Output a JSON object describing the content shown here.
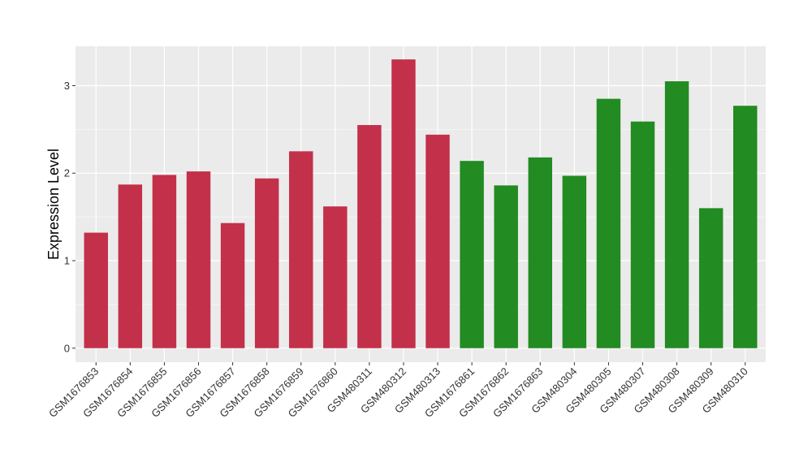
{
  "chart_data": {
    "type": "bar",
    "title": "",
    "xlabel": "",
    "ylabel": "Expression Level",
    "ylim": [
      -0.16,
      3.45
    ],
    "yticks": [
      0,
      1,
      2,
      3
    ],
    "grid": true,
    "legend": "none",
    "colors": {
      "group1": "#C3304A",
      "group2": "#228B22",
      "panel": "#EBEBEB",
      "grid": "#FFFFFF"
    },
    "categories": [
      "GSM1676853",
      "GSM1676854",
      "GSM1676855",
      "GSM1676856",
      "GSM1676857",
      "GSM1676858",
      "GSM1676859",
      "GSM1676860",
      "GSM480311",
      "GSM480312",
      "GSM480313",
      "GSM1676861",
      "GSM1676862",
      "GSM1676863",
      "GSM480304",
      "GSM480305",
      "GSM480307",
      "GSM480308",
      "GSM480309",
      "GSM480310"
    ],
    "values": [
      1.32,
      1.87,
      1.98,
      2.02,
      1.43,
      1.94,
      2.25,
      1.62,
      2.55,
      3.3,
      2.44,
      2.14,
      1.86,
      2.18,
      1.97,
      2.85,
      2.59,
      3.05,
      1.6,
      2.77
    ],
    "groups": [
      1,
      1,
      1,
      1,
      1,
      1,
      1,
      1,
      1,
      1,
      1,
      2,
      2,
      2,
      2,
      2,
      2,
      2,
      2,
      2
    ]
  }
}
